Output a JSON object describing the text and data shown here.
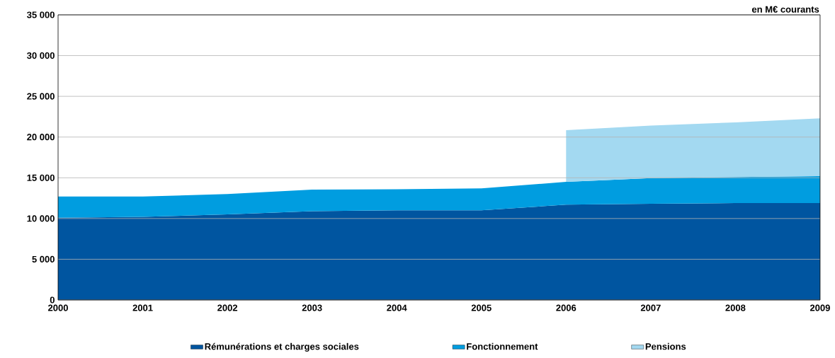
{
  "chart_data": {
    "type": "area",
    "stacked": true,
    "x": [
      2000,
      2001,
      2002,
      2003,
      2004,
      2005,
      2006,
      2007,
      2008,
      2009
    ],
    "series": [
      {
        "name": "Rémunérations et charges sociales",
        "color": "#0055a0",
        "values": [
          10100,
          10200,
          10500,
          10900,
          11000,
          11000,
          11700,
          11800,
          11900,
          11900
        ]
      },
      {
        "name": "Fonctionnement",
        "color": "#009de0",
        "values": [
          2600,
          2500,
          2500,
          2650,
          2600,
          2700,
          2800,
          3150,
          3200,
          3300
        ]
      },
      {
        "name": "Pensions",
        "color": "#a3d9f1",
        "values": [
          null,
          null,
          null,
          null,
          null,
          null,
          6350,
          6450,
          6700,
          7100
        ]
      }
    ],
    "xlim": [
      2000,
      2009
    ],
    "xticks": [
      2000,
      2001,
      2002,
      2003,
      2004,
      2005,
      2006,
      2007,
      2008,
      2009
    ],
    "ylim": [
      0,
      35000
    ],
    "yticks": [
      0,
      {
        "value": 5000,
        "label": "5 000"
      },
      {
        "value": 10000,
        "label": "10 000"
      },
      {
        "value": 15000,
        "label": "15 000"
      },
      {
        "value": 20000,
        "label": "20 000"
      },
      {
        "value": 25000,
        "label": "25 000"
      },
      {
        "value": 30000,
        "label": "30 000"
      },
      {
        "value": 35000,
        "label": "35 000"
      }
    ],
    "grid": "y",
    "legend": "bottom",
    "annotations": [
      "en M€ courants"
    ]
  }
}
